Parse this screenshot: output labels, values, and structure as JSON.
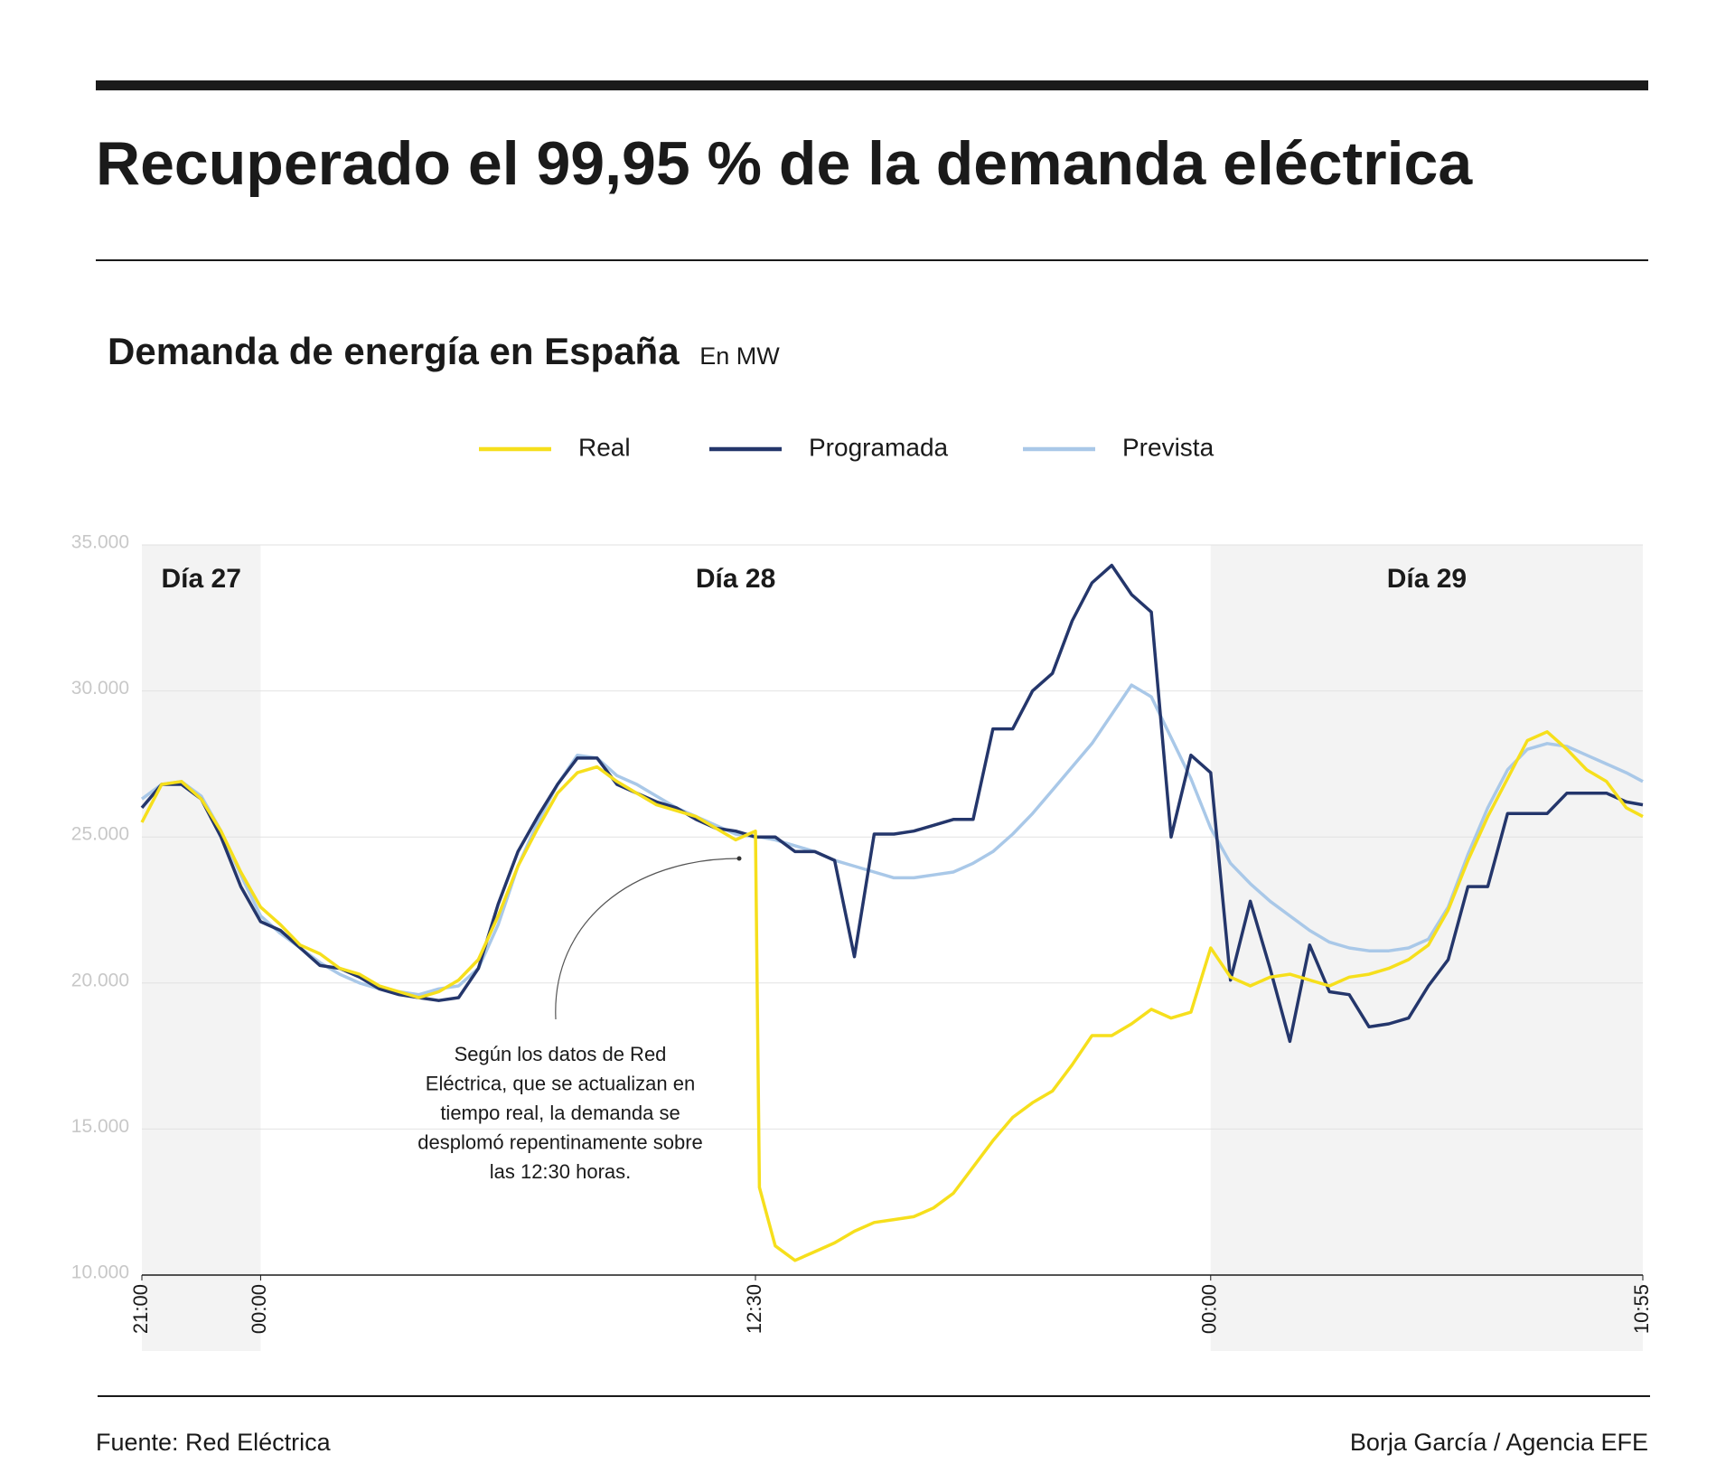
{
  "header": {
    "title": "Recuperado el 99,95 % de la demanda eléctrica"
  },
  "chart_data": {
    "type": "line",
    "title": "Demanda de energía en España",
    "subtitle": "En MW",
    "x": [
      0,
      0.5,
      1,
      1.5,
      2,
      2.5,
      3,
      3.5,
      4,
      4.5,
      5,
      5.5,
      6,
      6.5,
      7,
      7.5,
      8,
      8.5,
      9,
      9.5,
      10,
      10.5,
      11,
      11.5,
      12,
      12.5,
      13,
      13.5,
      14,
      14.5,
      15,
      15.5,
      15.6,
      16,
      16.5,
      17,
      17.5,
      18,
      18.5,
      19,
      19.5,
      20,
      20.5,
      21,
      21.5,
      22,
      22.5,
      23,
      23.5,
      24,
      24.5,
      25,
      25.5,
      26,
      26.5,
      27,
      27.5,
      28,
      28.5,
      29,
      29.5,
      30,
      30.5,
      31,
      31.5,
      32,
      32.5,
      33,
      33.5,
      34,
      34.5,
      35,
      35.5,
      36,
      36.5,
      37,
      37.5,
      37.9167
    ],
    "series": [
      {
        "name": "Real",
        "color": "#f6df1c",
        "values": [
          25500,
          26800,
          26900,
          26300,
          25200,
          23800,
          22600,
          22000,
          21300,
          21000,
          20500,
          20300,
          19900,
          19700,
          19500,
          19700,
          20100,
          20800,
          22300,
          24000,
          25300,
          26500,
          27200,
          27400,
          26900,
          26500,
          26100,
          25900,
          25700,
          25300,
          24900,
          25200,
          13000,
          11000,
          10500,
          10800,
          11100,
          11500,
          11800,
          11900,
          12000,
          12300,
          12800,
          13700,
          14600,
          15400,
          15900,
          16300,
          17200,
          18200,
          18200,
          18600,
          19100,
          18800,
          19000,
          21200,
          20200,
          19900,
          20200,
          20300,
          20100,
          19900,
          20200,
          20300,
          20500,
          20800,
          21300,
          22500,
          24200,
          25700,
          27000,
          28300,
          28600,
          28000,
          27300,
          26900,
          26000,
          25700
        ]
      },
      {
        "name": "Programada",
        "color": "#24366b",
        "values": [
          26000,
          26800,
          26800,
          26300,
          25000,
          23300,
          22100,
          21800,
          21200,
          20600,
          20500,
          20200,
          19800,
          19600,
          19500,
          19400,
          19500,
          20500,
          22700,
          24500,
          25700,
          26800,
          27700,
          27700,
          26800,
          26500,
          26200,
          26000,
          25600,
          25300,
          25200,
          25000,
          25000,
          25000,
          24500,
          24500,
          24200,
          20900,
          25100,
          25100,
          25200,
          25400,
          25600,
          25600,
          28700,
          28700,
          30000,
          30600,
          32400,
          33700,
          34300,
          33300,
          32700,
          25000,
          27800,
          27200,
          20100,
          22800,
          20500,
          18000,
          21300,
          19700,
          19600,
          18500,
          18600,
          18800,
          19900,
          20800,
          23300,
          23300,
          25800,
          25800,
          25800,
          26500,
          26500,
          26500,
          26200,
          26100
        ]
      },
      {
        "name": "Prevista",
        "color": "#a9c8e8",
        "values": [
          26300,
          26800,
          26900,
          26400,
          25200,
          23700,
          22300,
          21700,
          21200,
          20700,
          20300,
          20000,
          19800,
          19700,
          19600,
          19800,
          19900,
          20500,
          22000,
          24000,
          25500,
          26800,
          27800,
          27700,
          27100,
          26800,
          26400,
          26000,
          25700,
          25400,
          25100,
          25000,
          25000,
          24900,
          24700,
          24500,
          24200,
          24000,
          23800,
          23600,
          23600,
          23700,
          23800,
          24100,
          24500,
          25100,
          25800,
          26600,
          27400,
          28200,
          29200,
          30200,
          29800,
          28400,
          27000,
          25300,
          24100,
          23400,
          22800,
          22300,
          21800,
          21400,
          21200,
          21100,
          21100,
          21200,
          21500,
          22600,
          24400,
          26000,
          27300,
          28000,
          28200,
          28100,
          27800,
          27500,
          27200,
          26900
        ]
      }
    ],
    "xlim": [
      0,
      37.9167
    ],
    "xticks": [
      {
        "value": 0,
        "label": "21:00"
      },
      {
        "value": 3,
        "label": "00:00"
      },
      {
        "value": 15.5,
        "label": "12:30"
      },
      {
        "value": 27,
        "label": "00:00"
      },
      {
        "value": 37.9167,
        "label": "10:55"
      }
    ],
    "ylim": [
      10000,
      35000
    ],
    "yticks": [
      {
        "value": 10000,
        "label": "10.000"
      },
      {
        "value": 15000,
        "label": "15.000"
      },
      {
        "value": 20000,
        "label": "20.000"
      },
      {
        "value": 25000,
        "label": "25.000"
      },
      {
        "value": 30000,
        "label": "30.000"
      },
      {
        "value": 35000,
        "label": "35.000"
      }
    ],
    "grid": true,
    "legend": "top",
    "periods": [
      {
        "label": "Día 27",
        "start": 0,
        "end": 3,
        "shaded": true
      },
      {
        "label": "Día 28",
        "start": 3,
        "end": 27,
        "shaded": false
      },
      {
        "label": "Día 29",
        "start": 27,
        "end": 37.9167,
        "shaded": true
      }
    ],
    "annotation": [
      "Según los datos de Red",
      "Eléctrica, que se actualizan en",
      "tiempo real, la demanda se",
      "desplomó repentinamente sobre",
      "las 12:30 horas."
    ]
  },
  "footer": {
    "source": "Fuente: Red Eléctrica",
    "credit": "Borja García / Agencia EFE"
  }
}
